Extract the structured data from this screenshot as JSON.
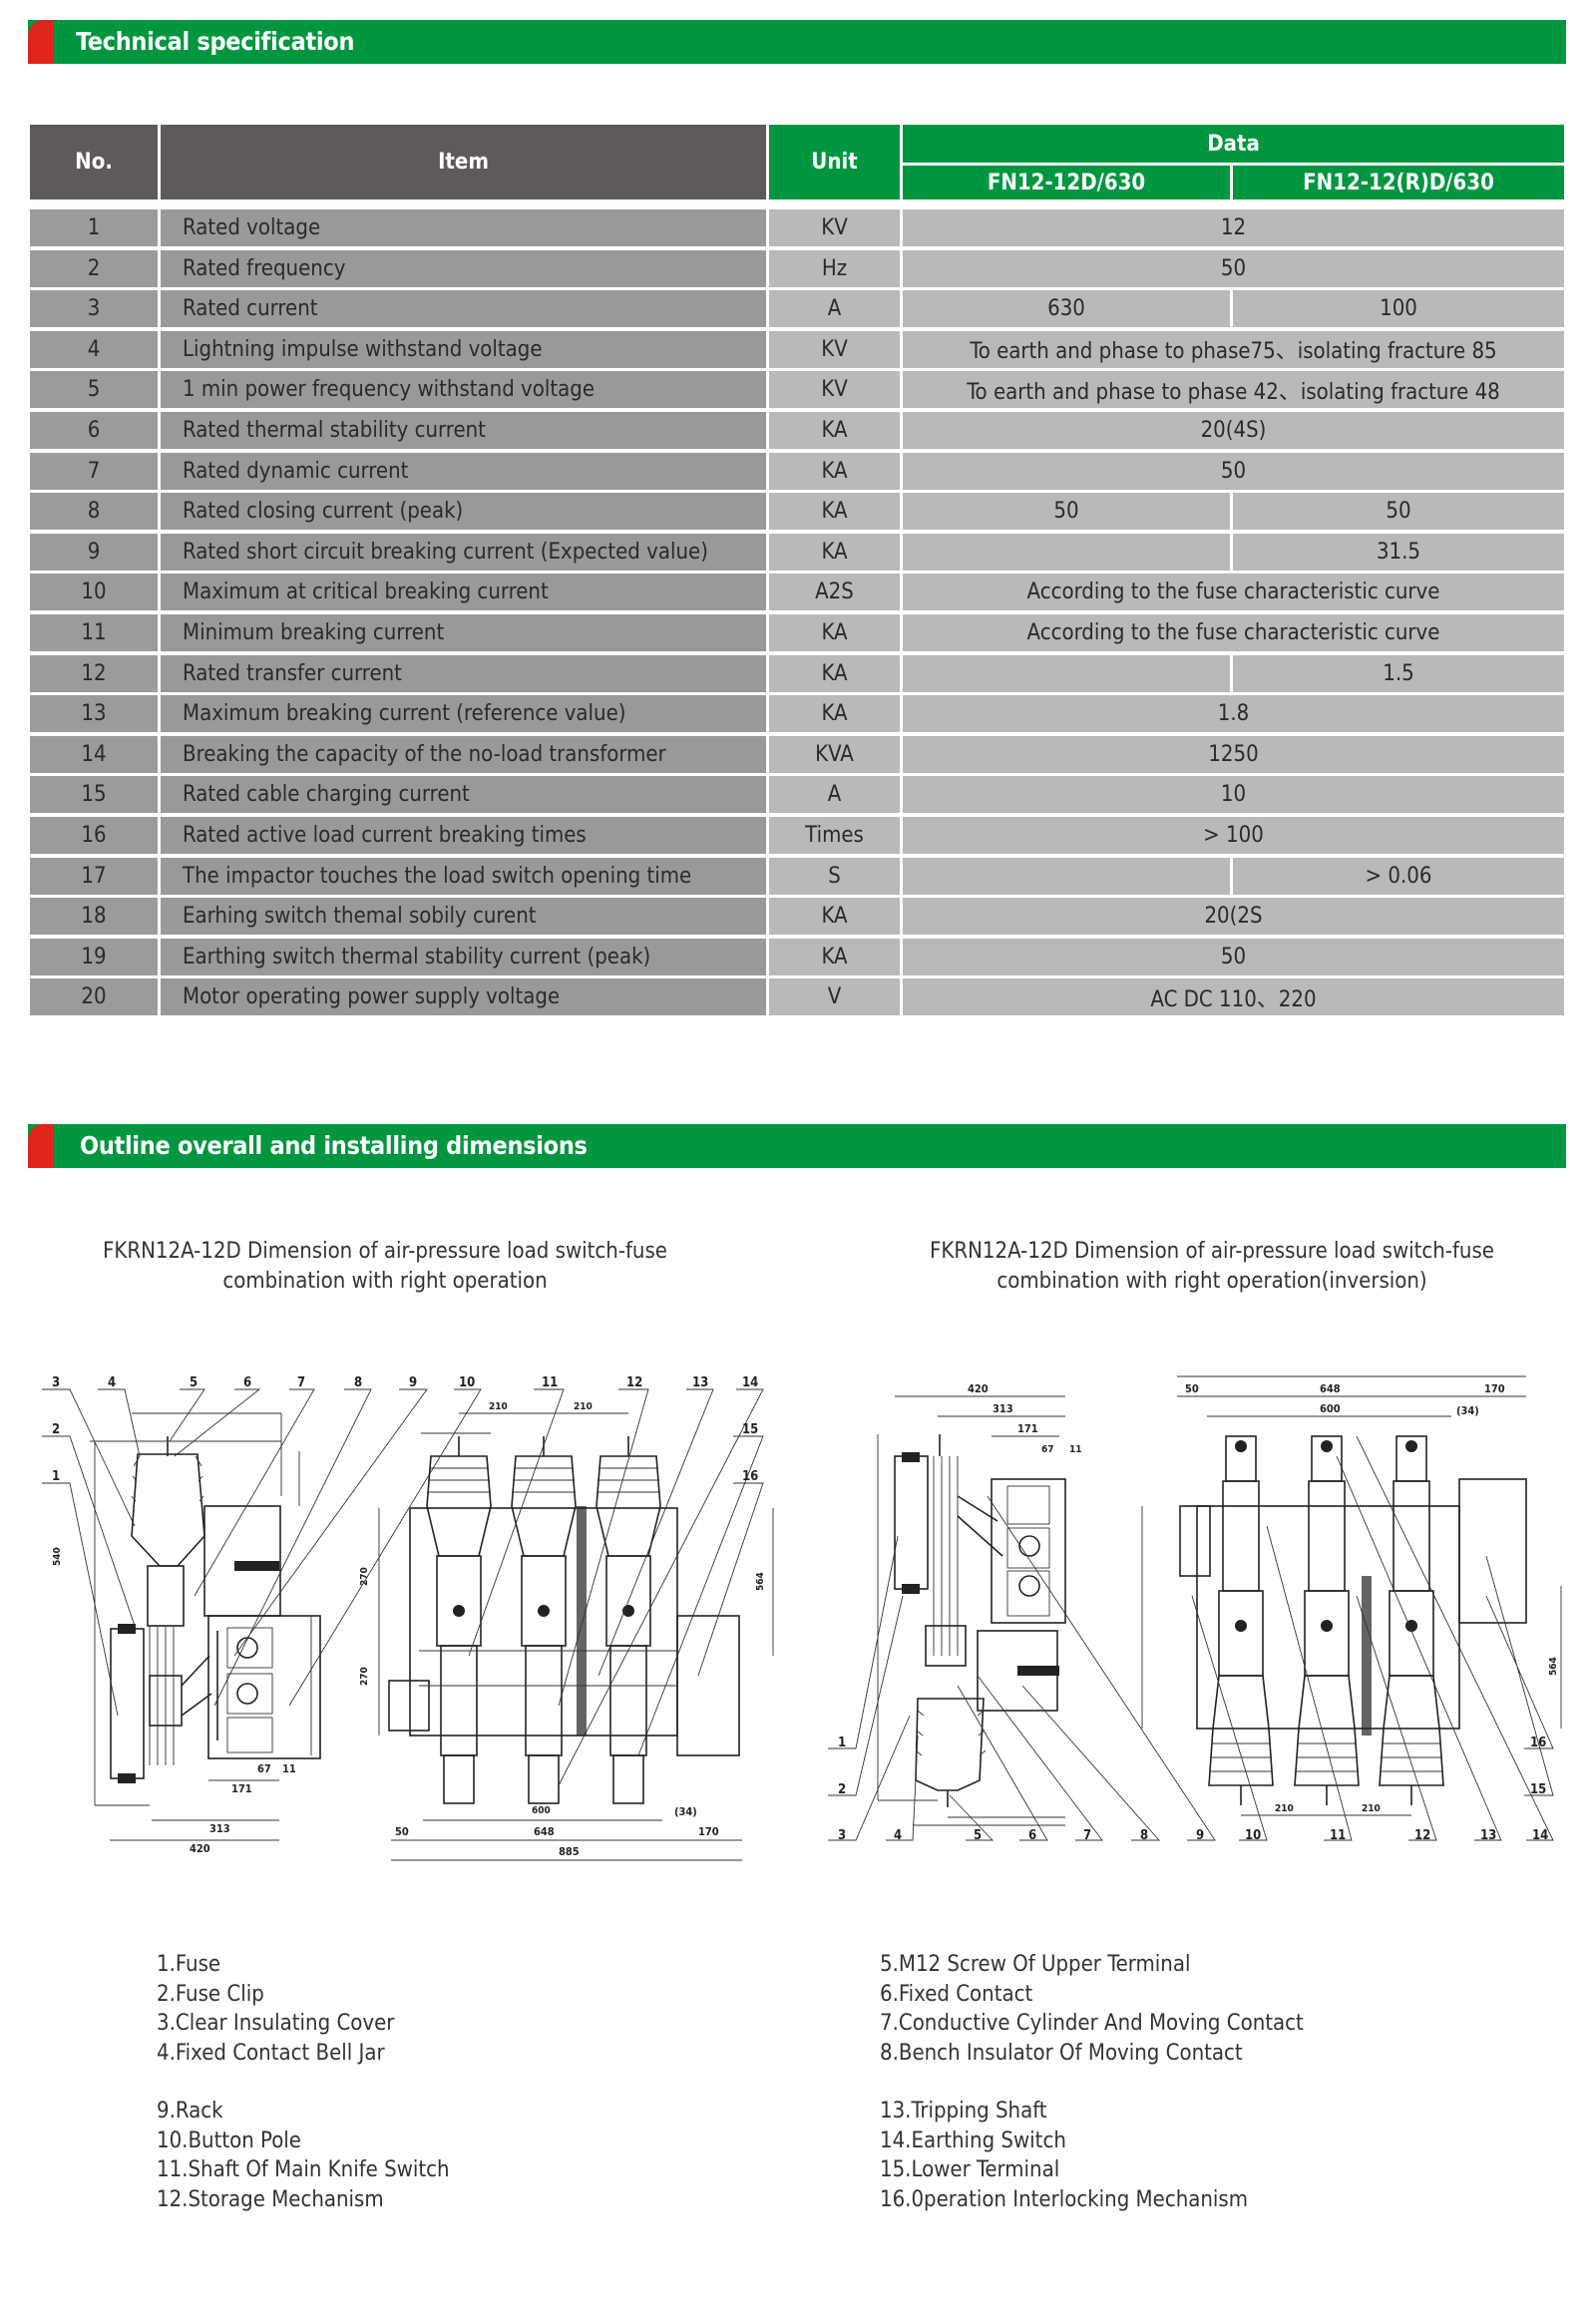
{
  "sections": {
    "spec_title": "Technical specification",
    "outline_title": "Outline overall and installing dimensions"
  },
  "colors": {
    "accent_green": "#009640",
    "accent_red": "#e0261b",
    "header_grey": "#5e5a59"
  },
  "table": {
    "headers": {
      "no": "No.",
      "item": "Item",
      "unit": "Unit",
      "data": "Data",
      "model_a": "FN12-12D/630",
      "model_b": "FN12-12(R)D/630"
    },
    "rows": [
      {
        "no": "1",
        "item": "Rated voltage",
        "unit": "KV",
        "value": "12"
      },
      {
        "no": "2",
        "item": "Rated frequency",
        "unit": "Hz",
        "value": "50"
      },
      {
        "no": "3",
        "item": "Rated current",
        "unit": "A",
        "a": "630",
        "b": "100"
      },
      {
        "no": "4",
        "item": "Lightning impulse withstand voltage",
        "unit": "KV",
        "value": "To earth and phase to phase75、isolating fracture 85"
      },
      {
        "no": "5",
        "item": "1 min power frequency withstand voltage",
        "unit": "KV",
        "value": "To earth and phase to phase 42、isolating fracture 48"
      },
      {
        "no": "6",
        "item": "Rated thermal stability current",
        "unit": "KA",
        "value": "20(4S)"
      },
      {
        "no": "7",
        "item": "Rated dynamic current",
        "unit": "KA",
        "value": "50"
      },
      {
        "no": "8",
        "item": "Rated closing current (peak)",
        "unit": "KA",
        "a": "50",
        "b": "50"
      },
      {
        "no": "9",
        "item": "Rated short circuit breaking current (Expected value)",
        "unit": "KA",
        "a": "",
        "b": "31.5"
      },
      {
        "no": "10",
        "item": "Maximum at critical breaking current",
        "unit": "A2S",
        "value": "According to the fuse characteristic curve"
      },
      {
        "no": "11",
        "item": "Minimum breaking current",
        "unit": "KA",
        "value": "According to the fuse characteristic curve"
      },
      {
        "no": "12",
        "item": "Rated transfer current",
        "unit": "KA",
        "a": "",
        "b": "1.5"
      },
      {
        "no": "13",
        "item": "Maximum breaking current (reference value)",
        "unit": "KA",
        "value": "1.8"
      },
      {
        "no": "14",
        "item": "Breaking the capacity of the no-load transformer",
        "unit": "KVA",
        "value": "1250"
      },
      {
        "no": "15",
        "item": "Rated cable charging current",
        "unit": "A",
        "value": "10"
      },
      {
        "no": "16",
        "item": "Rated active load current breaking times",
        "unit": "Times",
        "value": "> 100"
      },
      {
        "no": "17",
        "item": "The impactor touches the load switch opening time",
        "unit": "S",
        "a": "",
        "b": "> 0.06"
      },
      {
        "no": "18",
        "item": "Earhing switch themal sobily curent",
        "unit": "KA",
        "value": "20(2S"
      },
      {
        "no": "19",
        "item": "Earthing switch thermal stability current (peak)",
        "unit": "KA",
        "value": "50"
      },
      {
        "no": "20",
        "item": "Motor operating power supply voltage",
        "unit": "V",
        "value": "AC DC 110、220"
      }
    ]
  },
  "drawings": {
    "left": {
      "caption_line1": "FKRN12A-12D Dimension of air-pressure load switch-fuse",
      "caption_line2": "combination with right operation",
      "callouts": [
        "1",
        "2",
        "3",
        "4",
        "5",
        "6",
        "7",
        "8",
        "9",
        "10",
        "11",
        "12",
        "13",
        "14",
        "15",
        "16"
      ],
      "dims": {
        "d420": "420",
        "d313": "313",
        "d171": "171",
        "d67": "67",
        "d11": "11",
        "d50": "50",
        "d648": "648",
        "d170": "170",
        "d885": "885",
        "d210a": "210",
        "d210b": "210",
        "d600": "600",
        "d34": "(34)",
        "d270a": "270",
        "d270b": "270",
        "d540": "540",
        "d564": "564"
      }
    },
    "right": {
      "caption_line1": "FKRN12A-12D Dimension of air-pressure load switch-fuse",
      "caption_line2": "combination with right operation(inversion)",
      "callouts": [
        "1",
        "2",
        "3",
        "4",
        "5",
        "6",
        "7",
        "8",
        "9",
        "10",
        "11",
        "12",
        "13",
        "14",
        "15",
        "16"
      ],
      "dims": {
        "d420": "420",
        "d313": "313",
        "d171": "171",
        "d67": "67",
        "d11": "11",
        "d50": "50",
        "d648": "648",
        "d170": "170",
        "d600": "600",
        "d34": "(34)",
        "d210a": "210",
        "d210b": "210",
        "d564": "564"
      }
    }
  },
  "legend": {
    "col1": [
      "1.Fuse",
      "2.Fuse Clip",
      "3.Clear Insulating Cover",
      "4.Fixed Contact Bell Jar"
    ],
    "col2": [
      "9.Rack",
      "10.Button Pole",
      "11.Shaft Of Main Knife Switch",
      "12.Storage Mechanism"
    ],
    "col3": [
      "5.M12 Screw Of Upper Terminal",
      "6.Fixed Contact",
      "7.Conductive Cylinder And Moving Contact",
      "8.Bench Insulator Of Moving Contact"
    ],
    "col4": [
      "13.Tripping Shaft",
      "14.Earthing Switch",
      "15.Lower Terminal",
      "16.0peration Interlocking Mechanism"
    ]
  }
}
